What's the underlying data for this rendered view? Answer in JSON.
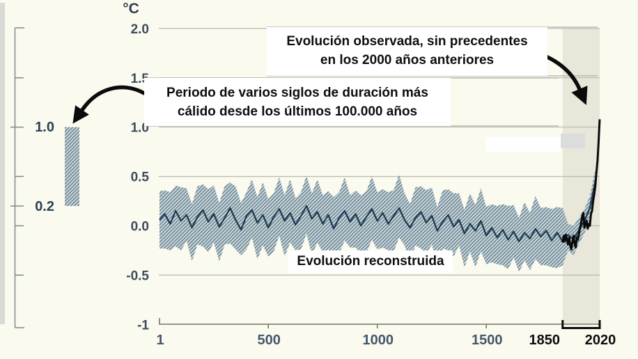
{
  "figure": {
    "background": "#fafaef",
    "highlight_color": "#e9e6da",
    "band_color": "#7490a6",
    "band_stripe_color": "#e3e6da",
    "median_color": "#1f3a52",
    "observed_color": "#0b0b0b",
    "axis_label_color": "#44566b",
    "y_label_color": "#3d4b5c",
    "bold_label_color": "#0c0c0c",
    "gridline_color": "#b9b9b0",
    "axis_line_color": "#76756f"
  },
  "chart_data": {
    "type": "line",
    "title": "",
    "xlabel": "",
    "ylabel": "°C",
    "grid": true,
    "legend_position": "none",
    "ylim": [
      -1,
      2.0
    ],
    "xlim": [
      1,
      2020
    ],
    "ytick_values": [
      2.0,
      1.5,
      1.0,
      0.5,
      0.0,
      -0.5,
      -1
    ],
    "ytick_labels": [
      "2.0",
      "1.5",
      "1.0",
      "0.5",
      "0.0",
      "-0.5",
      "-1"
    ],
    "xtick_values": [
      1,
      500,
      1000,
      1500,
      1850,
      2020
    ],
    "xtick_labels": [
      "1",
      "500",
      "1000",
      "1500",
      "1850",
      "2020"
    ],
    "highlight_span": [
      1850,
      2020
    ],
    "left_scale": {
      "bar_range": [
        0.2,
        1.0
      ],
      "labels": [
        "1.0",
        "0.2"
      ],
      "tick_values": [
        2.0,
        1.5,
        1.0,
        0.5,
        0.2,
        0.0,
        -0.5,
        -1
      ]
    },
    "annotations": {
      "observed_note": {
        "line1": "Evolución observada, sin precedentes",
        "line2": "en los 2000 años anteriores"
      },
      "warm_period_note": {
        "line1": "Periodo de varios siglos de duración más",
        "line2": "cálido desde los últimos 100.000 años"
      },
      "series_label": "Evolución reconstruida"
    },
    "series": [
      {
        "name": "Evolución reconstruida",
        "type": "line_with_band",
        "x": [
          1,
          25,
          50,
          75,
          100,
          125,
          150,
          175,
          200,
          225,
          250,
          275,
          300,
          325,
          350,
          375,
          400,
          425,
          450,
          475,
          500,
          525,
          550,
          575,
          600,
          625,
          650,
          675,
          700,
          725,
          750,
          775,
          800,
          825,
          850,
          875,
          900,
          925,
          950,
          975,
          1000,
          1025,
          1050,
          1075,
          1100,
          1125,
          1150,
          1175,
          1200,
          1225,
          1250,
          1275,
          1300,
          1325,
          1350,
          1375,
          1400,
          1425,
          1450,
          1475,
          1500,
          1525,
          1550,
          1575,
          1600,
          1625,
          1650,
          1675,
          1700,
          1725,
          1750,
          1775,
          1800,
          1825,
          1850,
          1875,
          1900,
          1925,
          1950,
          1975,
          2000
        ],
        "median": [
          0.06,
          0.12,
          0.02,
          0.15,
          0.05,
          0.11,
          -0.02,
          0.09,
          0.16,
          0.04,
          0.12,
          -0.01,
          0.08,
          0.18,
          0.06,
          -0.04,
          0.1,
          0.16,
          0.03,
          0.11,
          -0.02,
          0.09,
          0.17,
          0.05,
          0.13,
          0.01,
          0.1,
          0.2,
          0.07,
          0.14,
          0.02,
          0.11,
          -0.03,
          0.08,
          0.15,
          0.04,
          0.12,
          0.0,
          0.09,
          0.17,
          0.05,
          0.13,
          0.02,
          0.1,
          0.18,
          0.06,
          -0.02,
          0.08,
          0.14,
          0.03,
          0.1,
          -0.05,
          0.04,
          0.11,
          -0.01,
          0.06,
          -0.08,
          0.02,
          -0.05,
          0.05,
          -0.1,
          -0.02,
          -0.12,
          -0.04,
          -0.14,
          -0.06,
          -0.16,
          -0.07,
          -0.13,
          -0.03,
          -0.11,
          -0.05,
          -0.15,
          -0.07,
          -0.16,
          -0.09,
          -0.14,
          -0.04,
          0.05,
          0.18,
          0.45
        ],
        "upper": [
          0.35,
          0.36,
          0.34,
          0.41,
          0.39,
          0.38,
          0.22,
          0.4,
          0.42,
          0.37,
          0.41,
          0.23,
          0.4,
          0.44,
          0.4,
          0.23,
          0.34,
          0.47,
          0.29,
          0.44,
          0.27,
          0.33,
          0.49,
          0.31,
          0.47,
          0.28,
          0.34,
          0.51,
          0.33,
          0.47,
          0.31,
          0.35,
          0.29,
          0.34,
          0.49,
          0.31,
          0.36,
          0.31,
          0.35,
          0.5,
          0.34,
          0.37,
          0.34,
          0.36,
          0.52,
          0.33,
          0.22,
          0.39,
          0.4,
          0.36,
          0.39,
          0.19,
          0.36,
          0.37,
          0.33,
          0.33,
          0.16,
          0.33,
          0.21,
          0.38,
          0.19,
          0.22,
          0.2,
          0.22,
          0.2,
          0.21,
          0.08,
          0.24,
          0.13,
          0.3,
          0.18,
          0.19,
          0.17,
          0.19,
          0.18,
          0.02,
          0.0,
          0.08,
          0.17,
          0.3,
          0.57
        ],
        "lower": [
          -0.23,
          -0.23,
          -0.25,
          -0.21,
          -0.25,
          -0.15,
          -0.36,
          -0.19,
          -0.21,
          -0.27,
          -0.17,
          -0.36,
          -0.19,
          -0.18,
          -0.24,
          -0.3,
          -0.24,
          -0.12,
          -0.34,
          -0.2,
          -0.31,
          -0.26,
          -0.1,
          -0.31,
          -0.17,
          -0.25,
          -0.24,
          -0.08,
          -0.3,
          -0.17,
          -0.27,
          -0.24,
          -0.3,
          -0.28,
          -0.15,
          -0.22,
          -0.22,
          -0.28,
          -0.28,
          -0.14,
          -0.24,
          -0.22,
          -0.25,
          -0.26,
          -0.12,
          -0.2,
          -0.36,
          -0.2,
          -0.23,
          -0.28,
          -0.19,
          -0.4,
          -0.23,
          -0.25,
          -0.31,
          -0.2,
          -0.42,
          -0.26,
          -0.42,
          -0.26,
          -0.39,
          -0.37,
          -0.39,
          -0.4,
          -0.44,
          -0.32,
          -0.47,
          -0.35,
          -0.45,
          -0.34,
          -0.4,
          -0.4,
          -0.42,
          -0.43,
          -0.4,
          -0.25,
          -0.3,
          -0.18,
          -0.08,
          0.06,
          0.32
        ]
      },
      {
        "name": "Evolución observada",
        "type": "line",
        "x": [
          1850,
          1855,
          1860,
          1865,
          1870,
          1875,
          1880,
          1885,
          1890,
          1895,
          1900,
          1905,
          1910,
          1915,
          1920,
          1925,
          1930,
          1935,
          1940,
          1945,
          1950,
          1955,
          1960,
          1965,
          1970,
          1975,
          1980,
          1985,
          1990,
          1995,
          2000,
          2005,
          2010,
          2015,
          2020
        ],
        "values": [
          -0.17,
          -0.1,
          -0.16,
          -0.09,
          -0.14,
          -0.19,
          -0.12,
          -0.2,
          -0.24,
          -0.16,
          -0.1,
          -0.18,
          -0.22,
          -0.12,
          -0.14,
          -0.08,
          -0.02,
          0.03,
          0.1,
          0.13,
          -0.02,
          0.02,
          0.05,
          -0.03,
          0.02,
          0.0,
          0.12,
          0.15,
          0.25,
          0.32,
          0.4,
          0.54,
          0.66,
          0.85,
          1.08
        ]
      }
    ]
  }
}
